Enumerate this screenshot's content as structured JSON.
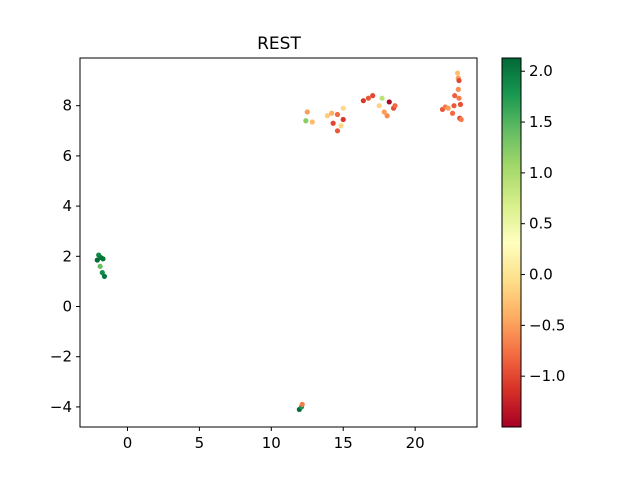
{
  "chart_data": {
    "type": "scatter",
    "title": "REST",
    "xlabel": "",
    "ylabel": "",
    "xlim": [
      -3.3,
      24.3
    ],
    "ylim": [
      -4.8,
      9.9
    ],
    "xticks": [
      0,
      5,
      10,
      15,
      20
    ],
    "yticks": [
      -4,
      -2,
      0,
      2,
      4,
      6,
      8
    ],
    "grid": false,
    "colorbar": {
      "colormap": "RdYlGn",
      "range": [
        -1.5,
        2.13
      ],
      "ticks": [
        -1.0,
        -0.5,
        0.0,
        0.5,
        1.0,
        1.5,
        2.0
      ],
      "tick_labels": [
        "−1.0",
        "−0.5",
        "0.0",
        "0.5",
        "1.0",
        "1.5",
        "2.0"
      ]
    },
    "points": [
      {
        "x": -2.0,
        "y": 2.05,
        "c": 1.9
      },
      {
        "x": -1.85,
        "y": 1.95,
        "c": 2.0
      },
      {
        "x": -1.7,
        "y": 1.9,
        "c": 2.05
      },
      {
        "x": -2.1,
        "y": 1.85,
        "c": 2.1
      },
      {
        "x": -1.9,
        "y": 1.6,
        "c": 1.4
      },
      {
        "x": -1.75,
        "y": 1.35,
        "c": 1.85
      },
      {
        "x": -1.6,
        "y": 1.2,
        "c": 2.0
      },
      {
        "x": 11.95,
        "y": -4.1,
        "c": 2.1
      },
      {
        "x": 12.1,
        "y": -4.0,
        "c": 1.8
      },
      {
        "x": 12.15,
        "y": -3.9,
        "c": -0.7
      },
      {
        "x": 12.4,
        "y": 7.4,
        "c": 1.2
      },
      {
        "x": 12.5,
        "y": 7.75,
        "c": -0.5
      },
      {
        "x": 12.85,
        "y": 7.35,
        "c": -0.3
      },
      {
        "x": 13.9,
        "y": 7.6,
        "c": -0.2
      },
      {
        "x": 14.2,
        "y": 7.7,
        "c": -0.4
      },
      {
        "x": 14.3,
        "y": 7.3,
        "c": -1.0
      },
      {
        "x": 14.6,
        "y": 7.65,
        "c": -0.8
      },
      {
        "x": 14.6,
        "y": 7.0,
        "c": -0.9
      },
      {
        "x": 14.85,
        "y": 7.2,
        "c": -0.1
      },
      {
        "x": 15.0,
        "y": 7.45,
        "c": -1.1
      },
      {
        "x": 15.0,
        "y": 7.9,
        "c": -0.1
      },
      {
        "x": 16.4,
        "y": 8.2,
        "c": -1.1
      },
      {
        "x": 16.75,
        "y": 8.3,
        "c": -0.9
      },
      {
        "x": 17.05,
        "y": 8.4,
        "c": -1.0
      },
      {
        "x": 17.5,
        "y": 8.0,
        "c": -0.15
      },
      {
        "x": 17.7,
        "y": 8.3,
        "c": 0.9
      },
      {
        "x": 17.85,
        "y": 7.75,
        "c": -0.5
      },
      {
        "x": 18.05,
        "y": 7.6,
        "c": -0.6
      },
      {
        "x": 18.2,
        "y": 8.15,
        "c": -1.45
      },
      {
        "x": 18.5,
        "y": 7.9,
        "c": -1.0
      },
      {
        "x": 18.6,
        "y": 8.0,
        "c": -0.8
      },
      {
        "x": 21.9,
        "y": 7.85,
        "c": -0.9
      },
      {
        "x": 22.1,
        "y": 7.95,
        "c": -0.7
      },
      {
        "x": 22.3,
        "y": 7.9,
        "c": -0.5
      },
      {
        "x": 22.6,
        "y": 7.7,
        "c": -0.8
      },
      {
        "x": 22.7,
        "y": 8.0,
        "c": -0.9
      },
      {
        "x": 22.75,
        "y": 8.4,
        "c": -0.85
      },
      {
        "x": 22.95,
        "y": 9.3,
        "c": -0.3
      },
      {
        "x": 23.0,
        "y": 9.1,
        "c": -0.5
      },
      {
        "x": 23.0,
        "y": 8.65,
        "c": -0.6
      },
      {
        "x": 23.05,
        "y": 8.3,
        "c": -0.7
      },
      {
        "x": 23.15,
        "y": 8.05,
        "c": -0.95
      },
      {
        "x": 23.1,
        "y": 7.5,
        "c": -1.0
      },
      {
        "x": 23.2,
        "y": 7.45,
        "c": -0.7
      },
      {
        "x": 23.05,
        "y": 9.0,
        "c": -1.0
      }
    ]
  }
}
